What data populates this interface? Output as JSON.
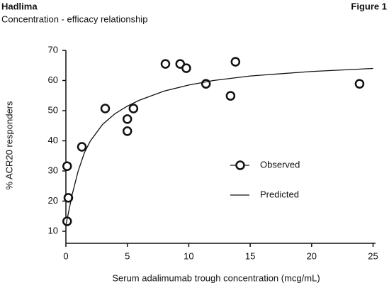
{
  "chart_data": {
    "type": "scatter",
    "title": "Hadlima",
    "figure_label": "Figure 1",
    "subtitle": "Concentration - efficacy relationship",
    "x_label": "Serum adalimumab trough concentration (mcg/mL)",
    "y_label": "% ACR20 responders",
    "xlim": [
      0,
      25.2
    ],
    "ylim": [
      6,
      70
    ],
    "xticks": [
      0,
      5,
      10,
      15,
      20,
      25
    ],
    "yticks": [
      10,
      20,
      30,
      40,
      50,
      60,
      70
    ],
    "legend": "center right",
    "series": [
      {
        "name": "Observed",
        "color": "#111111",
        "x": [
          0.1,
          0.2,
          0.1,
          1.3,
          3.2,
          5.0,
          5.0,
          5.5,
          8.1,
          9.3,
          9.8,
          11.4,
          13.4,
          13.8,
          23.9
        ],
        "values": [
          13.3,
          21.1,
          31.6,
          38.0,
          50.7,
          47.2,
          43.2,
          50.7,
          65.5,
          65.5,
          64.1,
          58.9,
          54.9,
          66.2,
          58.9
        ]
      },
      {
        "name": "Predicted",
        "color": "#111111",
        "x": [
          0,
          0.5,
          1,
          1.5,
          2,
          3,
          4,
          5,
          6,
          8,
          10,
          12,
          15,
          20,
          25
        ],
        "values": [
          12,
          22,
          30,
          36,
          40,
          45.5,
          49,
          51.5,
          53.5,
          56.5,
          58.5,
          60,
          61.5,
          63,
          64
        ]
      }
    ]
  }
}
